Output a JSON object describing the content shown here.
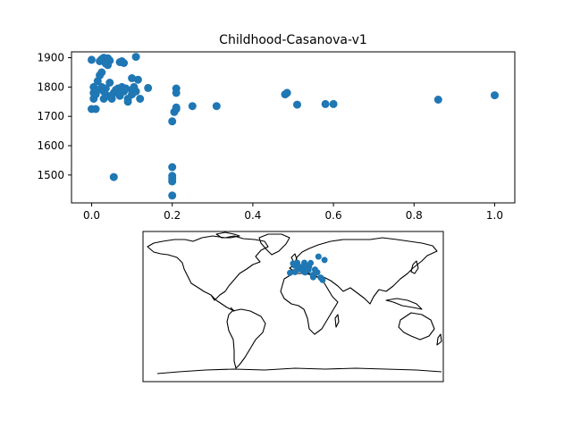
{
  "chart_data": [
    {
      "type": "scatter",
      "title": "Childhood-Casanova-v1",
      "xlabel": "",
      "ylabel": "",
      "xlim": [
        -0.05,
        1.05
      ],
      "ylim": [
        1405,
        1920
      ],
      "xticks": [
        0.0,
        0.2,
        0.4,
        0.6,
        0.8,
        1.0
      ],
      "yticks": [
        1500,
        1600,
        1700,
        1800,
        1900
      ],
      "xtick_labels": [
        "0.0",
        "0.2",
        "0.4",
        "0.6",
        "0.8",
        "1.0"
      ],
      "ytick_labels": [
        "1500",
        "1600",
        "1700",
        "1800",
        "1900"
      ],
      "grid": false,
      "marker_color": "#1f77b4",
      "points": [
        [
          0.0,
          1893
        ],
        [
          0.02,
          1888
        ],
        [
          0.025,
          1895
        ],
        [
          0.03,
          1900
        ],
        [
          0.035,
          1880
        ],
        [
          0.04,
          1898
        ],
        [
          0.045,
          1890
        ],
        [
          0.04,
          1875
        ],
        [
          0.11,
          1903
        ],
        [
          0.07,
          1885
        ],
        [
          0.075,
          1888
        ],
        [
          0.08,
          1882
        ],
        [
          0.0,
          1725
        ],
        [
          0.01,
          1725
        ],
        [
          0.005,
          1760
        ],
        [
          0.005,
          1780
        ],
        [
          0.005,
          1800
        ],
        [
          0.01,
          1775
        ],
        [
          0.015,
          1790
        ],
        [
          0.015,
          1820
        ],
        [
          0.02,
          1840
        ],
        [
          0.025,
          1850
        ],
        [
          0.025,
          1800
        ],
        [
          0.03,
          1760
        ],
        [
          0.03,
          1785
        ],
        [
          0.035,
          1795
        ],
        [
          0.04,
          1770
        ],
        [
          0.045,
          1815
        ],
        [
          0.05,
          1760
        ],
        [
          0.055,
          1780
        ],
        [
          0.06,
          1790
        ],
        [
          0.065,
          1795
        ],
        [
          0.07,
          1770
        ],
        [
          0.075,
          1800
        ],
        [
          0.08,
          1785
        ],
        [
          0.085,
          1795
        ],
        [
          0.09,
          1760
        ],
        [
          0.09,
          1750
        ],
        [
          0.1,
          1790
        ],
        [
          0.1,
          1775
        ],
        [
          0.105,
          1800
        ],
        [
          0.11,
          1785
        ],
        [
          0.1,
          1830
        ],
        [
          0.115,
          1825
        ],
        [
          0.12,
          1760
        ],
        [
          0.14,
          1797
        ],
        [
          0.2,
          1683
        ],
        [
          0.205,
          1715
        ],
        [
          0.21,
          1725
        ],
        [
          0.21,
          1730
        ],
        [
          0.21,
          1795
        ],
        [
          0.21,
          1780
        ],
        [
          0.25,
          1735
        ],
        [
          0.31,
          1735
        ],
        [
          0.48,
          1775
        ],
        [
          0.485,
          1780
        ],
        [
          0.51,
          1740
        ],
        [
          0.58,
          1742
        ],
        [
          0.6,
          1742
        ],
        [
          0.86,
          1757
        ],
        [
          1.0,
          1772
        ],
        [
          0.055,
          1493
        ],
        [
          0.2,
          1527
        ],
        [
          0.2,
          1497
        ],
        [
          0.2,
          1488
        ],
        [
          0.2,
          1478
        ],
        [
          0.2,
          1430
        ]
      ]
    },
    {
      "type": "map",
      "title": "",
      "projection": "plate-carree",
      "lon_range": [
        -180,
        180
      ],
      "lat_range": [
        -90,
        90
      ],
      "marker_color": "#1f77b4",
      "points_lonlat": [
        [
          2.3,
          48.9
        ],
        [
          12.3,
          45.4
        ],
        [
          12.5,
          41.9
        ],
        [
          7.7,
          45.1
        ],
        [
          14.3,
          40.9
        ],
        [
          16.4,
          48.2
        ],
        [
          13.4,
          52.5
        ],
        [
          13.7,
          51.0
        ],
        [
          4.9,
          52.4
        ],
        [
          -0.1,
          51.5
        ],
        [
          -3.7,
          40.4
        ],
        [
          9.2,
          45.5
        ],
        [
          11.3,
          43.8
        ],
        [
          11.9,
          45.4
        ],
        [
          23.7,
          37.9
        ],
        [
          30.3,
          59.9
        ],
        [
          37.6,
          55.8
        ],
        [
          21.0,
          52.2
        ],
        [
          19.0,
          47.5
        ],
        [
          28.9,
          41.0
        ],
        [
          8.5,
          47.4
        ],
        [
          6.1,
          46.2
        ],
        [
          26.1,
          44.4
        ],
        [
          18.4,
          43.9
        ],
        [
          24.0,
          35.3
        ],
        [
          33.0,
          34.7
        ],
        [
          35.2,
          31.8
        ],
        [
          2.2,
          41.4
        ]
      ]
    }
  ]
}
